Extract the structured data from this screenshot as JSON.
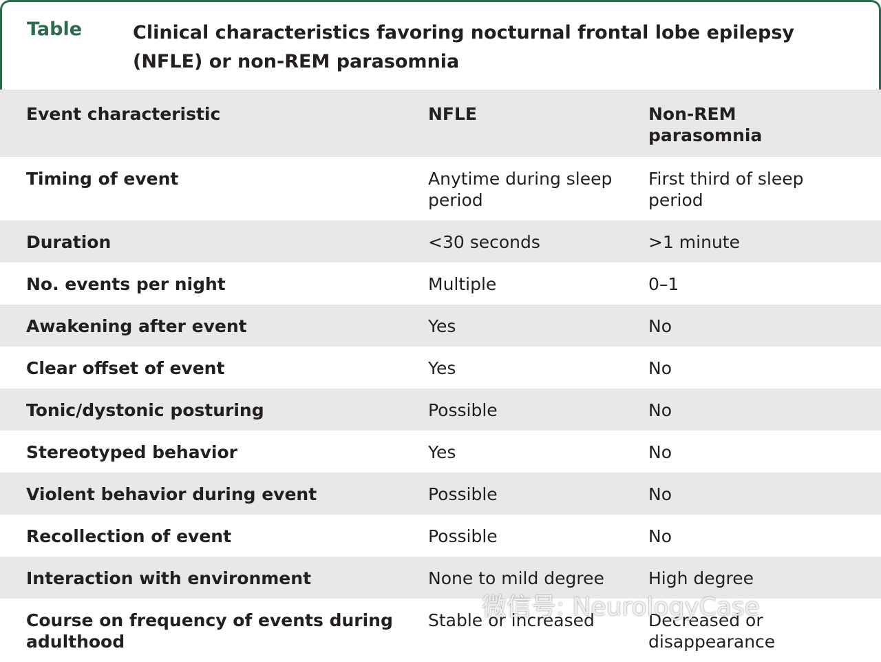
{
  "header": {
    "label": "Table",
    "title": "Clinical characteristics favoring nocturnal frontal lobe epilepsy (NFLE) or non-REM parasomnia"
  },
  "table": {
    "columns": [
      "Event characteristic",
      "NFLE",
      "Non-REM parasomnia"
    ],
    "rows": [
      [
        "Timing of event",
        "Anytime during sleep period",
        "First third of sleep period"
      ],
      [
        "Duration",
        "<30 seconds",
        ">1 minute"
      ],
      [
        "No. events per night",
        "Multiple",
        "0–1"
      ],
      [
        "Awakening after event",
        "Yes",
        "No"
      ],
      [
        "Clear offset of event",
        "Yes",
        "No"
      ],
      [
        "Tonic/dystonic posturing",
        "Possible",
        "No"
      ],
      [
        "Stereotyped behavior",
        "Yes",
        "No"
      ],
      [
        "Violent behavior during event",
        "Possible",
        "No"
      ],
      [
        "Recollection of event",
        "Possible",
        "No"
      ],
      [
        "Interaction with environment",
        "None to mild degree",
        "High degree"
      ],
      [
        "Course on frequency of events during adulthood",
        "Stable or increased",
        "Decreased or disappearance"
      ]
    ]
  },
  "watermark": "微信号: NeurologyCase"
}
